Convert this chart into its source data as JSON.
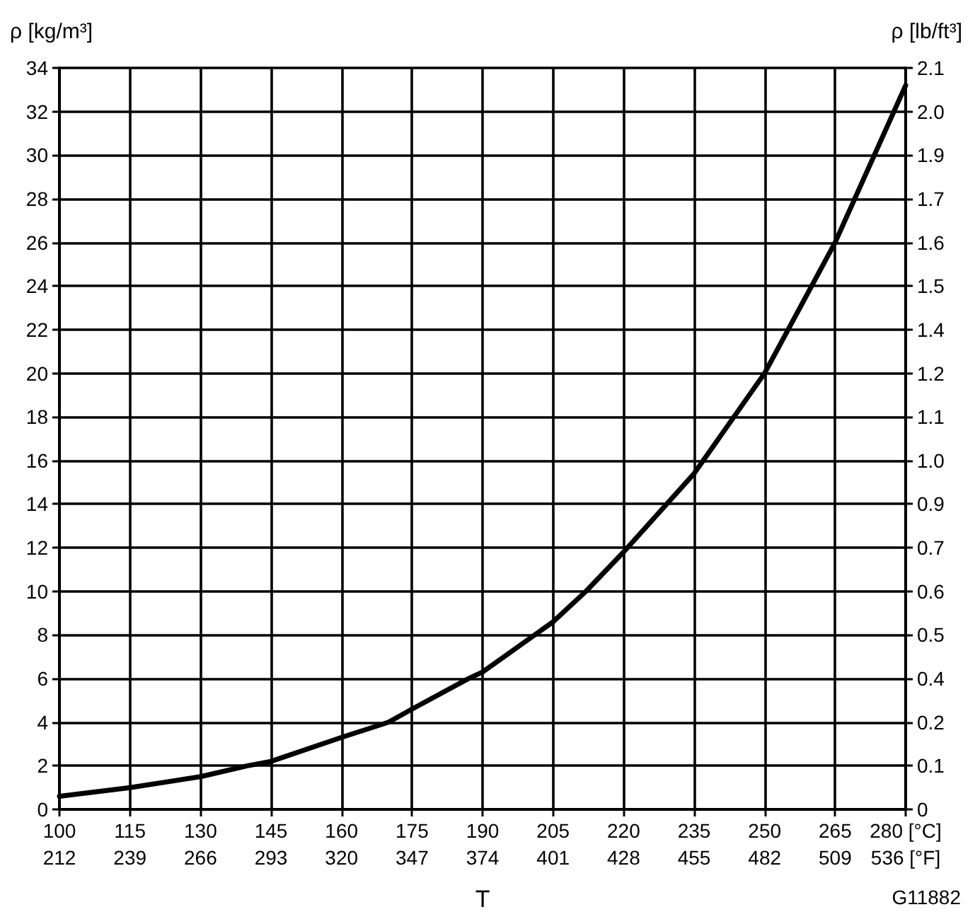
{
  "chart_data": {
    "type": "line",
    "xlabel": "T",
    "ylabel": "ρ [kg/m³]",
    "y2label": "ρ [lb/ft³]",
    "annotations": [
      "G11882"
    ],
    "x": [
      100,
      115,
      130,
      140,
      145,
      160,
      170,
      175,
      187,
      190,
      205,
      212,
      220,
      235,
      250,
      265,
      280
    ],
    "series": [
      {
        "color": "#000000",
        "values": [
          0.6,
          1.0,
          1.5,
          2.0,
          2.2,
          3.3,
          4.0,
          4.6,
          6.0,
          6.3,
          8.6,
          10.0,
          11.8,
          15.4,
          20.0,
          26.0,
          33.2
        ]
      }
    ],
    "xlim": [
      100,
      280
    ],
    "xticks": [
      100,
      115,
      130,
      145,
      160,
      175,
      190,
      205,
      220,
      235,
      250,
      265,
      {
        "value": 280,
        "label": "280 [°C]"
      }
    ],
    "x2lim": [
      212,
      536
    ],
    "x2ticks": [
      212,
      239,
      266,
      293,
      320,
      347,
      374,
      401,
      428,
      455,
      482,
      509,
      {
        "value": 536,
        "label": "536 [°F]"
      }
    ],
    "ylim": [
      0,
      34
    ],
    "yticks": [
      0,
      2,
      4,
      6,
      8,
      10,
      12,
      14,
      16,
      18,
      20,
      22,
      24,
      26,
      28,
      30,
      32,
      34
    ],
    "y2lim": [
      0,
      2.125
    ],
    "y2ticks": [
      0,
      {
        "value": 0.125,
        "label": "0.1"
      },
      {
        "value": 0.25,
        "label": "0.2"
      },
      {
        "value": 0.375,
        "label": "0.4"
      },
      {
        "value": 0.5,
        "label": "0.5"
      },
      {
        "value": 0.625,
        "label": "0.6"
      },
      {
        "value": 0.75,
        "label": "0.7"
      },
      {
        "value": 0.875,
        "label": "0.9"
      },
      {
        "value": 1,
        "label": "1.0"
      },
      {
        "value": 1.125,
        "label": "1.1"
      },
      {
        "value": 1.25,
        "label": "1.2"
      },
      {
        "value": 1.375,
        "label": "1.4"
      },
      {
        "value": 1.5,
        "label": "1.5"
      },
      {
        "value": 1.625,
        "label": "1.6"
      },
      {
        "value": 1.75,
        "label": "1.7"
      },
      {
        "value": 1.875,
        "label": "1.9"
      },
      {
        "value": 2,
        "label": "2.0"
      },
      {
        "value": 2.125,
        "label": "2.1"
      }
    ],
    "grid": true,
    "marker": "none",
    "line_style": "solid"
  }
}
